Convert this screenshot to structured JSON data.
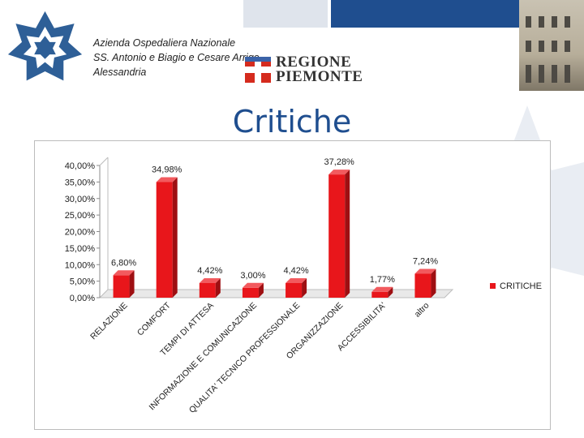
{
  "header": {
    "org_lines": [
      "Azienda Ospedaliera Nazionale",
      "SS. Antonio e Biagio e Cesare Arrigo",
      "Alessandria"
    ],
    "regione_lines": [
      "REGIONE",
      "PIEMONTE"
    ]
  },
  "page_title": "Critiche",
  "colors": {
    "accent": "#1f4e8f",
    "bar": "#e8161b",
    "bar_dark": "#9e0f12",
    "bar_top": "#f25a5e"
  },
  "chart_data": {
    "type": "bar",
    "categories": [
      "RELAZIONE",
      "COMFORT",
      "TEMPI DI ATTESA",
      "INFORMAZIONE E COMUNICAZIONE",
      "QUALITA' TECNICO PROFESSIONALE",
      "ORGANIZZAZIONE",
      "ACCESSIBILITA'",
      "altro"
    ],
    "series": [
      {
        "name": "CRITICHE",
        "values": [
          6.8,
          34.98,
          4.42,
          3.0,
          4.42,
          37.28,
          1.77,
          7.24
        ]
      }
    ],
    "data_labels": [
      "6,80%",
      "34,98%",
      "4,42%",
      "3,00%",
      "4,42%",
      "37,28%",
      "1,77%",
      "7,24%"
    ],
    "y_ticks": [
      "0,00%",
      "5,00%",
      "10,00%",
      "15,00%",
      "20,00%",
      "25,00%",
      "30,00%",
      "35,00%",
      "40,00%"
    ],
    "ylim": [
      0,
      40
    ],
    "grid": false,
    "legend_position": "right",
    "style": "3d"
  }
}
